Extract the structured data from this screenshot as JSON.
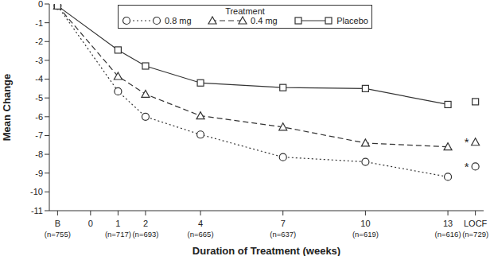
{
  "chart_data": {
    "type": "line",
    "legend_title": "Treatment",
    "x_label": "Duration of Treatment (weeks)",
    "y_label": "Mean Change",
    "x": [
      -1.2,
      1,
      2,
      4,
      7,
      10,
      13,
      13.5,
      14
    ],
    "xlim": [
      -1.5,
      14.3
    ],
    "xticks": [
      {
        "value": -1.2,
        "label": "B",
        "n": "(n=755)"
      },
      0,
      {
        "value": 1,
        "label": "1",
        "n": "(n=717)"
      },
      {
        "value": 2,
        "label": "2",
        "n": "(n=693)"
      },
      {
        "value": 4,
        "label": "4",
        "n": "(n=665)"
      },
      {
        "value": 7,
        "label": "7",
        "n": "(n=637)"
      },
      {
        "value": 10,
        "label": "10",
        "n": "(n=619)"
      },
      {
        "value": 13,
        "label": "13",
        "n": "(n=616)"
      },
      {
        "value": 14,
        "label": "LOCF",
        "n": "(n=729)"
      }
    ],
    "ylim": [
      -11,
      0
    ],
    "yticks": [
      0,
      -1,
      -2,
      -3,
      -4,
      -5,
      -6,
      -7,
      -8,
      -9,
      -10,
      -11
    ],
    "grid": false,
    "legend": "top",
    "series": [
      {
        "name": "0.8 mg",
        "color": "#333333",
        "marker": "circle",
        "line_style": "dotted",
        "values": [
          -0.1,
          -4.65,
          -6.0,
          -6.95,
          -8.15,
          -8.4,
          -9.2,
          null,
          -8.65
        ]
      },
      {
        "name": "0.4 mg",
        "color": "#333333",
        "marker": "triangle",
        "line_style": "dashed",
        "values": [
          -0.1,
          -3.85,
          -4.8,
          -5.95,
          -6.55,
          -7.4,
          -7.6,
          null,
          -7.35
        ]
      },
      {
        "name": "Placebo",
        "color": "#333333",
        "marker": "square",
        "line_style": "solid",
        "values": [
          -0.1,
          -2.45,
          -3.3,
          -4.2,
          -4.45,
          -4.5,
          -5.35,
          null,
          -5.2
        ]
      }
    ],
    "annotations": [
      {
        "text": "*",
        "x": 14,
        "y": -7.35
      },
      {
        "text": "*",
        "x": 14,
        "y": -8.65
      }
    ]
  }
}
